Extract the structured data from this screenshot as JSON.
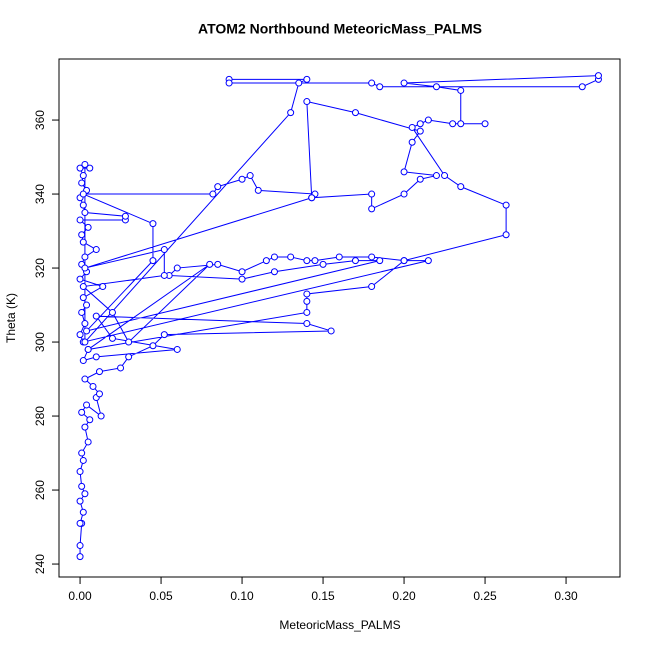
{
  "chart_data": {
    "type": "line",
    "title": "ATOM2 Northbound MeteoricMass_PALMS",
    "x_label": "MeteoricMass_PALMS",
    "y_label": "Theta (K)",
    "color": "#0000ff",
    "markers": true,
    "xlim": [
      -0.013,
      0.3333
    ],
    "ylim": [
      236.5,
      376.5
    ],
    "xticks": [
      {
        "value": 0,
        "label": "0.00"
      },
      {
        "value": 0.05,
        "label": "0.05"
      },
      {
        "value": 0.1,
        "label": "0.10"
      },
      {
        "value": 0.15,
        "label": "0.15"
      },
      {
        "value": 0.2,
        "label": "0.20"
      },
      {
        "value": 0.25,
        "label": "0.25"
      },
      {
        "value": 0.3,
        "label": "0.30"
      }
    ],
    "yticks": [
      240,
      260,
      280,
      300,
      320,
      340,
      360
    ],
    "x": [
      0.0,
      0.0,
      0.001,
      0.0,
      0.002,
      0.0,
      0.003,
      0.001,
      0.0,
      0.002,
      0.001,
      0.005,
      0.003,
      0.006,
      0.001,
      0.004,
      0.013,
      0.01,
      0.012,
      0.008,
      0.003,
      0.012,
      0.025,
      0.03,
      0.045,
      0.052,
      0.155,
      0.14,
      0.01,
      0.02,
      0.06,
      0.01,
      0.002,
      0.005,
      0.14,
      0.14,
      0.14,
      0.18,
      0.2,
      0.215,
      0.002,
      0.0,
      0.003,
      0.001,
      0.004,
      0.002,
      0.014,
      0.0,
      0.004,
      0.001,
      0.003,
      0.01,
      0.002,
      0.001,
      0.005,
      0.0,
      0.028,
      0.028,
      0.003,
      0.002,
      0.0,
      0.004,
      0.001,
      0.002,
      0.0,
      0.006,
      0.003,
      0.003,
      0.13,
      0.135,
      0.14,
      0.092,
      0.092,
      0.18,
      0.185,
      0.31,
      0.32,
      0.32,
      0.2,
      0.22,
      0.235,
      0.235,
      0.25,
      0.23,
      0.215,
      0.21,
      0.205,
      0.225,
      0.235,
      0.263,
      0.263,
      0.2,
      0.18,
      0.16,
      0.145,
      0.14,
      0.13,
      0.12,
      0.115,
      0.1,
      0.085,
      0.06,
      0.055,
      0.1,
      0.12,
      0.15,
      0.17,
      0.185,
      0.004,
      0.045,
      0.045,
      0.002,
      0.082,
      0.085,
      0.1,
      0.105,
      0.11,
      0.145,
      0.143,
      0.18,
      0.18,
      0.2,
      0.21,
      0.22,
      0.2,
      0.205,
      0.21,
      0.17,
      0.14,
      0.143,
      0.003,
      0.052,
      0.052,
      0.002,
      0.02,
      0.03,
      0.08,
      0.005
    ],
    "values": [
      242,
      245,
      251,
      251,
      254,
      257,
      259,
      261,
      265,
      268,
      270,
      273,
      277,
      279,
      281,
      283,
      280,
      285,
      286,
      288,
      290,
      292,
      293,
      296,
      299,
      302,
      303,
      305,
      307,
      301,
      298,
      296,
      295,
      298,
      308,
      311,
      313,
      315,
      322,
      322,
      300,
      302,
      305,
      308,
      310,
      312,
      315,
      317,
      319,
      321,
      323,
      325,
      327,
      329,
      331,
      333,
      333,
      334,
      335,
      337,
      339,
      341,
      343,
      345,
      347,
      347,
      348,
      300,
      362,
      370,
      371,
      371,
      370,
      370,
      369,
      369,
      371,
      372,
      370,
      369,
      368,
      359,
      359,
      359,
      360,
      359,
      358,
      345,
      342,
      337,
      329,
      322,
      323,
      323,
      322,
      322,
      323,
      323,
      322,
      319,
      321,
      320,
      318,
      317,
      319,
      321,
      322,
      322,
      303,
      322,
      332,
      340,
      340,
      342,
      344,
      345,
      341,
      340,
      339,
      340,
      336,
      340,
      344,
      345,
      346,
      354,
      357,
      362,
      365,
      339,
      320,
      325,
      318,
      315,
      308,
      300,
      321,
      298
    ]
  }
}
